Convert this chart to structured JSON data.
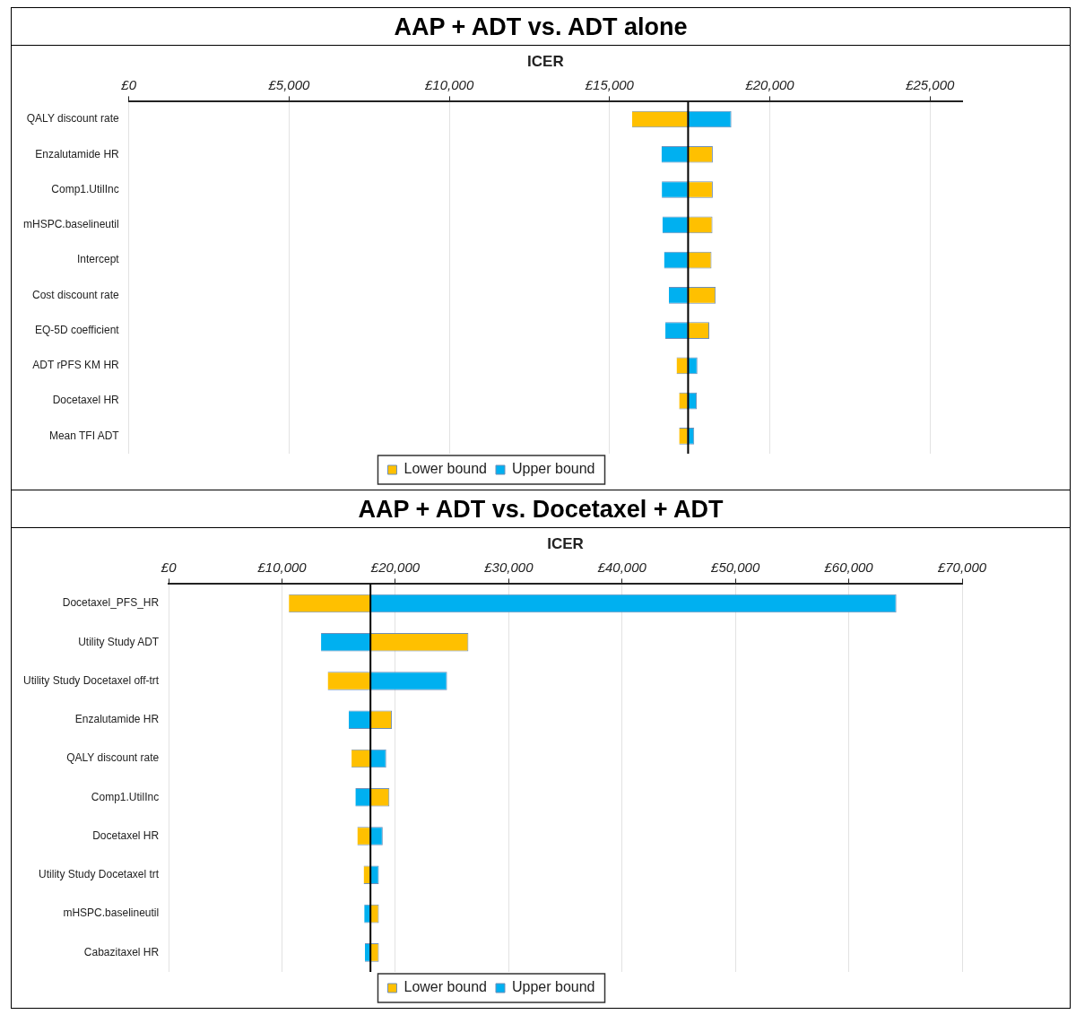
{
  "chart_data": [
    {
      "type": "bar",
      "title": "AAP + ADT vs. ADT alone",
      "xlabel": "ICER",
      "orientation": "horizontal",
      "categories": [
        "QALY discount rate",
        "Enzalutamide HR",
        "Comp1.UtilInc",
        "mHSPC.baselineutil",
        "Intercept",
        "Cost discount rate",
        "EQ-5D coefficient",
        "ADT rPFS KM HR",
        "Docetaxel HR",
        "Mean TFI ADT"
      ],
      "series": [
        {
          "name": "Lower bound",
          "color": "#ffc000",
          "base": [
            17450,
            17450,
            17450,
            17450,
            17450,
            17450,
            17450,
            17450,
            17450,
            17450
          ],
          "values": [
            -1750,
            770,
            770,
            760,
            730,
            860,
            660,
            -360,
            -280,
            -280
          ]
        },
        {
          "name": "Upper bound",
          "color": "#00b0f0",
          "base": [
            17450,
            17450,
            17450,
            17450,
            17450,
            17450,
            17450,
            17450,
            17450,
            17450
          ],
          "values": [
            1350,
            -830,
            -820,
            -800,
            -750,
            -600,
            -710,
            290,
            270,
            190
          ]
        }
      ],
      "xlim": [
        0,
        26000
      ],
      "xticks": [
        {
          "value": 0,
          "label": "£0"
        },
        {
          "value": 5000,
          "label": "£5,000"
        },
        {
          "value": 10000,
          "label": "£10,000"
        },
        {
          "value": 15000,
          "label": "£15,000"
        },
        {
          "value": 20000,
          "label": "£20,000"
        },
        {
          "value": 25000,
          "label": "£25,000"
        }
      ],
      "ref_lines": [
        {
          "axis": "x",
          "value": 17450,
          "color": "#000000"
        }
      ],
      "grid": "x",
      "legend": "bottom"
    },
    {
      "type": "bar",
      "title": "AAP + ADT vs. Docetaxel + ADT",
      "xlabel": "ICER",
      "orientation": "horizontal",
      "categories": [
        "Docetaxel_PFS_HR",
        "Utility Study ADT",
        "Utility Study Docetaxel off-trt",
        "Enzalutamide HR",
        "QALY discount rate",
        "Comp1.UtilInc",
        "Docetaxel HR",
        "Utility Study Docetaxel trt",
        "mHSPC.baselineutil",
        "Cabazitaxel HR"
      ],
      "series": [
        {
          "name": "Lower bound",
          "color": "#ffc000",
          "base": [
            17800,
            17800,
            17800,
            17800,
            17800,
            17800,
            17800,
            17800,
            17800,
            17800
          ],
          "values": [
            -7200,
            8640,
            -3770,
            1890,
            -1670,
            1670,
            -1160,
            -600,
            740,
            740
          ]
        },
        {
          "name": "Upper bound",
          "color": "#00b0f0",
          "base": [
            17800,
            17800,
            17800,
            17800,
            17800,
            17800,
            17800,
            17800,
            17800,
            17800
          ],
          "values": [
            46400,
            -4360,
            6760,
            -1920,
            1390,
            -1330,
            1080,
            740,
            -550,
            -490
          ]
        }
      ],
      "xlim": [
        0,
        70000
      ],
      "xticks": [
        {
          "value": 0,
          "label": "£0"
        },
        {
          "value": 10000,
          "label": "£10,000"
        },
        {
          "value": 20000,
          "label": "£20,000"
        },
        {
          "value": 30000,
          "label": "£30,000"
        },
        {
          "value": 40000,
          "label": "£40,000"
        },
        {
          "value": 50000,
          "label": "£50,000"
        },
        {
          "value": 60000,
          "label": "£60,000"
        },
        {
          "value": 70000,
          "label": "£70,000"
        }
      ],
      "ref_lines": [
        {
          "axis": "x",
          "value": 17800,
          "color": "#000000"
        }
      ],
      "grid": "x",
      "legend": "bottom"
    }
  ]
}
